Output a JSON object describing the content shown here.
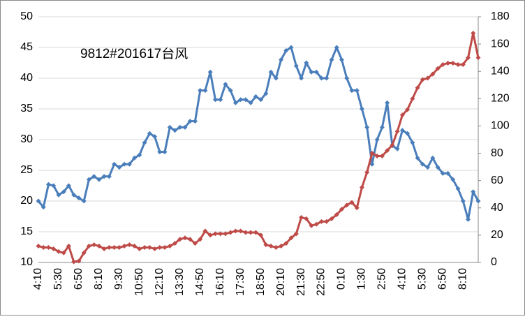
{
  "chart_data": {
    "type": "line",
    "annotation": "9812#201617台风",
    "categories": [
      "4:10",
      null,
      null,
      null,
      "5:30",
      null,
      null,
      null,
      "6:50",
      null,
      null,
      null,
      "8:10",
      null,
      null,
      null,
      "9:30",
      null,
      null,
      null,
      "10:50",
      null,
      null,
      null,
      "12:10",
      null,
      null,
      null,
      "13:30",
      null,
      null,
      null,
      "14:50",
      null,
      null,
      null,
      "16:10",
      null,
      null,
      null,
      "17:30",
      null,
      null,
      null,
      "18:50",
      null,
      null,
      null,
      "20:10",
      null,
      null,
      null,
      "21:30",
      null,
      null,
      null,
      "22:50",
      null,
      null,
      null,
      "0:10",
      null,
      null,
      null,
      "1:30",
      null,
      null,
      null,
      "2:50",
      null,
      null,
      null,
      "4:10",
      null,
      null,
      null,
      "5:30",
      null,
      null,
      null,
      "6:50",
      null,
      null,
      null,
      "8:10",
      null,
      null,
      null
    ],
    "series": [
      {
        "color": "#4a7ebb",
        "axis": "y",
        "values": [
          20,
          19,
          22.7,
          22.5,
          21,
          21.5,
          22.5,
          21,
          20.5,
          20,
          23.5,
          24,
          23.5,
          24,
          24,
          26,
          25.5,
          26,
          26,
          27,
          27.5,
          29.5,
          31,
          30.5,
          28,
          28,
          32,
          31.5,
          32,
          32,
          33,
          33,
          38,
          38,
          41,
          36.5,
          36.5,
          39,
          38,
          36,
          36.5,
          36.5,
          36,
          37,
          36.5,
          37.5,
          41,
          40,
          43,
          44.5,
          45,
          42,
          40,
          42.5,
          41,
          41,
          40,
          40,
          43,
          45,
          43,
          40,
          38,
          38,
          35,
          32,
          26,
          30,
          32,
          36,
          29,
          28.5,
          31.5,
          31,
          29.5,
          27,
          26,
          25.5,
          27,
          25.5,
          24.5,
          24.5,
          23.5,
          22,
          20,
          17,
          21.5,
          20
        ]
      },
      {
        "color": "#be4b48",
        "axis": "y2",
        "values": [
          12,
          11,
          11,
          10,
          8,
          7,
          12,
          0.5,
          1,
          7,
          12,
          13,
          12,
          10,
          11,
          11,
          11,
          12,
          13,
          12,
          10,
          11,
          11,
          10,
          11,
          11,
          12,
          14,
          17,
          18,
          17,
          14,
          17,
          23,
          20,
          21,
          21,
          21,
          22,
          23,
          23,
          22,
          22,
          22,
          20,
          13,
          12,
          11,
          12,
          14,
          18,
          21,
          33,
          32,
          27,
          28,
          30,
          30,
          32,
          35,
          39,
          42,
          44,
          40,
          55,
          66,
          80,
          78,
          78,
          82,
          86,
          96,
          108,
          112,
          120,
          128,
          134,
          135,
          138,
          142,
          145,
          146,
          146,
          145,
          145,
          150,
          168,
          150
        ]
      }
    ],
    "ylim": [
      10,
      50
    ],
    "yticks": [
      10,
      15,
      20,
      25,
      30,
      35,
      40,
      45,
      50
    ],
    "y2lim": [
      0,
      180
    ],
    "y2ticks": [
      0,
      20,
      40,
      60,
      80,
      100,
      120,
      140,
      160,
      180
    ],
    "grid": true
  }
}
